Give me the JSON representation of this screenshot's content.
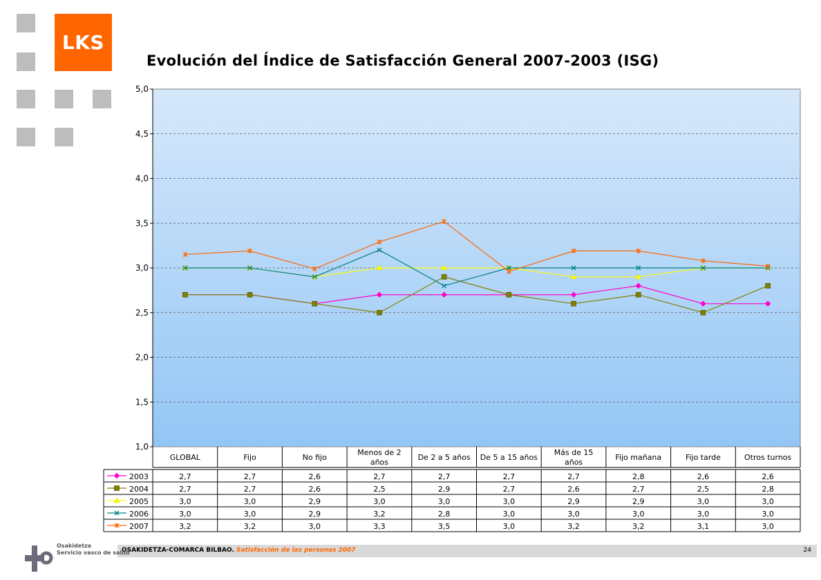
{
  "brand": {
    "logo_text": "LKS",
    "accent": "#ff6600"
  },
  "title": "Evolución del Índice de Satisfacción General 2007-2003 (ISG)",
  "chart_data": {
    "type": "line",
    "title": "Evolución del Índice de Satisfacción General 2007-2003 (ISG)",
    "xlabel": "",
    "ylabel": "",
    "ylim": [
      1.0,
      5.0
    ],
    "yticks": [
      "1,0",
      "1,5",
      "2,0",
      "2,5",
      "3,0",
      "3,5",
      "4,0",
      "4,5",
      "5,0"
    ],
    "grid": true,
    "legend": "data-table",
    "categories": [
      [
        "GLOBAL"
      ],
      [
        "Fijo"
      ],
      [
        "No fijo"
      ],
      [
        "Menos de 2",
        "años"
      ],
      [
        "De 2 a 5 años"
      ],
      [
        "De 5 a 15 años"
      ],
      [
        "Más de 15",
        "años"
      ],
      [
        "Fijo mañana"
      ],
      [
        "Fijo tarde"
      ],
      [
        "Otros turnos"
      ]
    ],
    "series": [
      {
        "name": "2003",
        "color": "#ff00cc",
        "marker": "diamond",
        "values": [
          2.7,
          2.7,
          2.6,
          2.7,
          2.7,
          2.7,
          2.7,
          2.8,
          2.6,
          2.6
        ],
        "labels": [
          "2,7",
          "2,7",
          "2,6",
          "2,7",
          "2,7",
          "2,7",
          "2,7",
          "2,8",
          "2,6",
          "2,6"
        ]
      },
      {
        "name": "2004",
        "color": "#808000",
        "marker": "square",
        "values": [
          2.7,
          2.7,
          2.6,
          2.5,
          2.9,
          2.7,
          2.6,
          2.7,
          2.5,
          2.8
        ],
        "labels": [
          "2,7",
          "2,7",
          "2,6",
          "2,5",
          "2,9",
          "2,7",
          "2,6",
          "2,7",
          "2,5",
          "2,8"
        ]
      },
      {
        "name": "2005",
        "color": "#ffff00",
        "marker": "triangle",
        "values": [
          3.0,
          3.0,
          2.9,
          3.0,
          3.0,
          3.0,
          2.9,
          2.9,
          3.0,
          3.0
        ],
        "labels": [
          "3,0",
          "3,0",
          "2,9",
          "3,0",
          "3,0",
          "3,0",
          "2,9",
          "2,9",
          "3,0",
          "3,0"
        ]
      },
      {
        "name": "2006",
        "color": "#008080",
        "marker": "x",
        "values": [
          3.0,
          3.0,
          2.9,
          3.2,
          2.8,
          3.0,
          3.0,
          3.0,
          3.0,
          3.0
        ],
        "labels": [
          "3,0",
          "3,0",
          "2,9",
          "3,2",
          "2,8",
          "3,0",
          "3,0",
          "3,0",
          "3,0",
          "3,0"
        ]
      },
      {
        "name": "2007",
        "color": "#ff6600",
        "marker": "star",
        "values": [
          3.15,
          3.19,
          2.99,
          3.29,
          3.52,
          2.96,
          3.19,
          3.19,
          3.08,
          3.02
        ],
        "labels": [
          "3,2",
          "3,2",
          "3,0",
          "3,3",
          "3,5",
          "3,0",
          "3,2",
          "3,2",
          "3,1",
          "3,0"
        ]
      }
    ]
  },
  "footer": {
    "org": "OSAKIDETZA-COMARCA BILBAO.",
    "subtitle": "Satisfacción de las personas 2007",
    "page": "24",
    "osakidetza_line1": "Osakidetza",
    "osakidetza_line2": "Servicio vasco de salud"
  }
}
